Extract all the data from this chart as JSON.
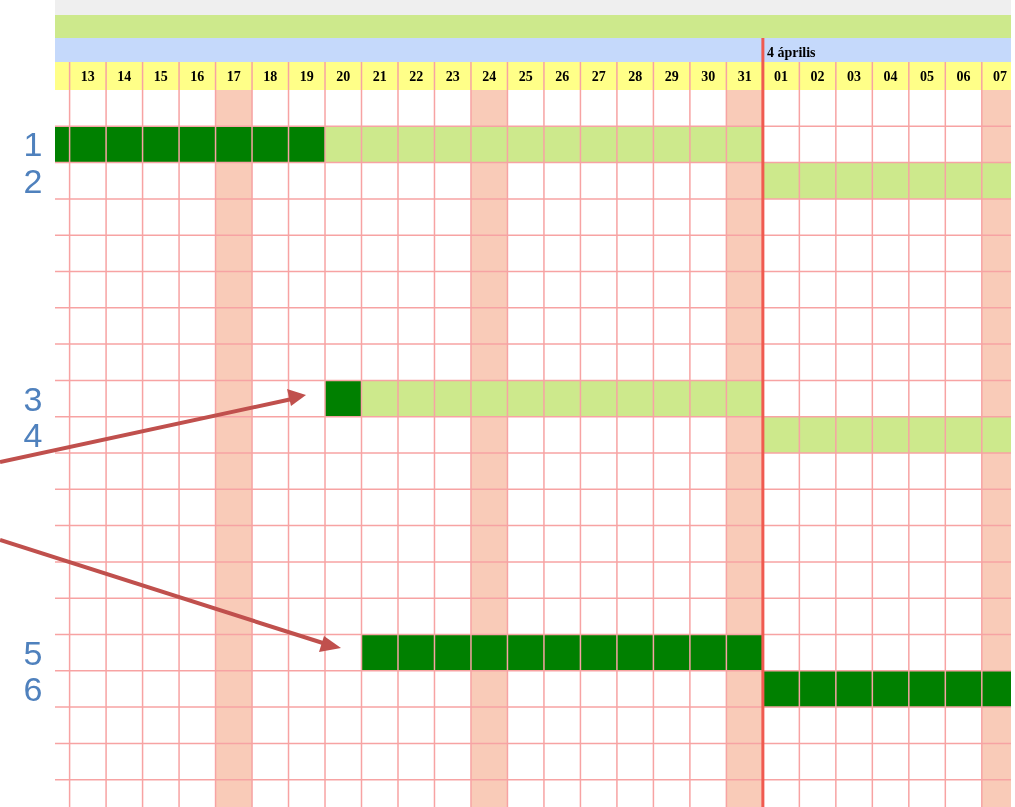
{
  "chart_data": {
    "type": "bar",
    "orientation": "horizontal",
    "categories": [
      null,
      "1",
      "2",
      null,
      null,
      null,
      null,
      null,
      "3",
      "4",
      null,
      null,
      null,
      null,
      null,
      "5",
      "6",
      null,
      null,
      null
    ],
    "series": [
      {
        "color": "#008000",
        "base": [
          null,
          12.1,
          null,
          null,
          null,
          null,
          null,
          null,
          19.5,
          null,
          null,
          null,
          null,
          null,
          null,
          20.5,
          31.5,
          null,
          null,
          null
        ],
        "values": [
          null,
          7.4,
          null,
          null,
          null,
          null,
          null,
          null,
          1,
          null,
          null,
          null,
          null,
          null,
          null,
          11,
          6.8,
          null,
          null,
          null
        ]
      },
      {
        "color": "#cde98c",
        "base": [
          null,
          19.5,
          31.5,
          null,
          null,
          null,
          null,
          null,
          20.5,
          31.5,
          null,
          null,
          null,
          null,
          null,
          null,
          null,
          null,
          null,
          null
        ],
        "values": [
          null,
          12,
          6.8,
          null,
          null,
          null,
          null,
          null,
          11,
          6.8,
          null,
          null,
          null,
          null,
          null,
          null,
          null,
          null,
          null,
          null
        ]
      }
    ],
    "xlim": [
      12.1,
      38.3
    ],
    "xticks": [
      13,
      14,
      15,
      16,
      17,
      18,
      19,
      20,
      21,
      22,
      23,
      24,
      25,
      26,
      27,
      28,
      29,
      30,
      31
    ],
    "x2lim": [
      -18.9,
      7.3
    ],
    "x2ticks": [
      {
        "value": 1,
        "label": "01"
      },
      {
        "value": 2,
        "label": "02"
      },
      {
        "value": 3,
        "label": "03"
      },
      {
        "value": 4,
        "label": "04"
      },
      {
        "value": 5,
        "label": "05"
      },
      {
        "value": 6,
        "label": "06"
      },
      {
        "value": 7,
        "label": "07"
      }
    ],
    "ref_lines": [
      {
        "axis": "x",
        "value": 31.5,
        "label": "4 április",
        "color": "#f05a50"
      }
    ],
    "bands": [
      {
        "axis": "x",
        "from": 16.5,
        "to": 17.5,
        "color": "#f9cbb8"
      },
      {
        "axis": "x",
        "from": 23.5,
        "to": 24.5,
        "color": "#f9cbb8"
      },
      {
        "axis": "x",
        "from": 30.5,
        "to": 31.5,
        "color": "#f9cbb8"
      },
      {
        "axis": "x",
        "from": 37.5,
        "to": 38.3,
        "color": "#f9cbb8"
      }
    ],
    "grid": true
  }
}
